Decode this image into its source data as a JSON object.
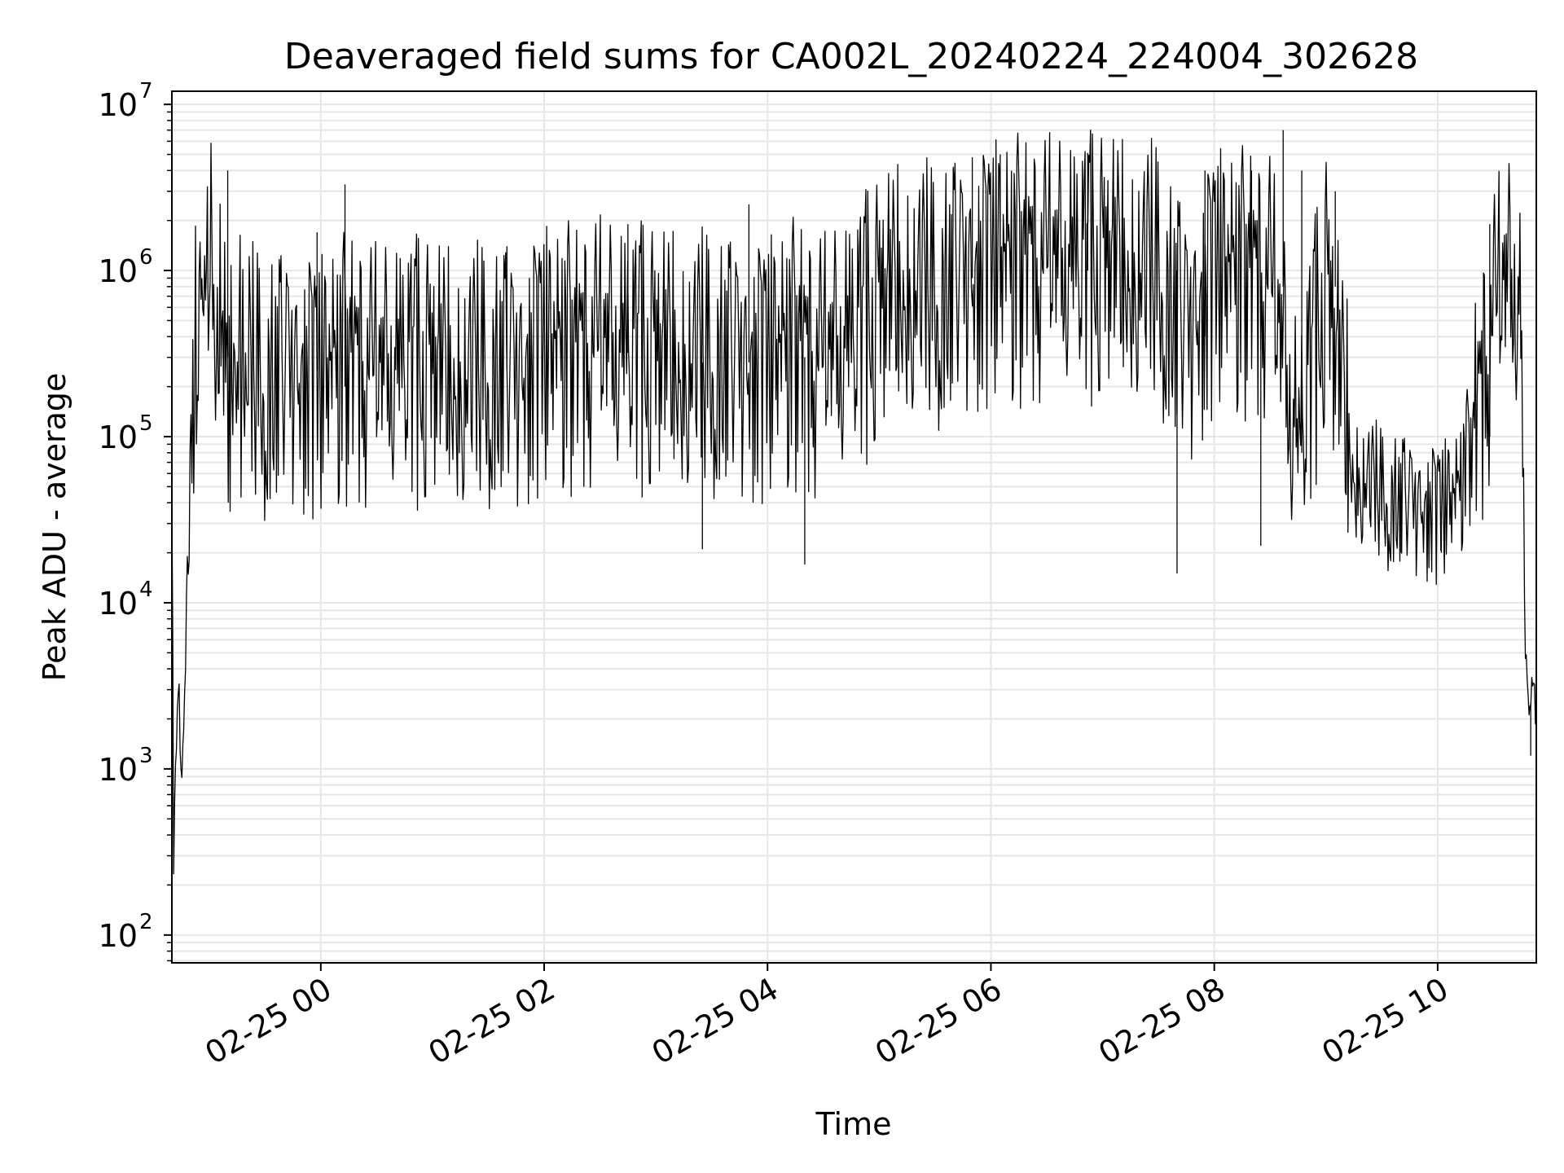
{
  "chart_data": {
    "type": "line",
    "title": "Deaveraged field sums for CA002L_20240224_224004_302628",
    "xlabel": "Time",
    "ylabel": "Peak ADU - average",
    "yscale": "log",
    "grid": true,
    "xlim": [
      "2025-02-24 22:40",
      "2025-02-25 10:53"
    ],
    "ylim": [
      68,
      12000000
    ],
    "x_ticks": [
      {
        "value": "2025-02-25 00:00",
        "label": "02-25 00"
      },
      {
        "value": "2025-02-25 02:00",
        "label": "02-25 02"
      },
      {
        "value": "2025-02-25 04:00",
        "label": "02-25 04"
      },
      {
        "value": "2025-02-25 06:00",
        "label": "02-25 06"
      },
      {
        "value": "2025-02-25 08:00",
        "label": "02-25 08"
      },
      {
        "value": "2025-02-25 10:00",
        "label": "02-25 10"
      }
    ],
    "y_ticks": [
      {
        "value": 100,
        "base": "10",
        "exp": "2"
      },
      {
        "value": 1000,
        "base": "10",
        "exp": "3"
      },
      {
        "value": 10000,
        "base": "10",
        "exp": "4"
      },
      {
        "value": 100000,
        "base": "10",
        "exp": "5"
      },
      {
        "value": 1000000,
        "base": "10",
        "exp": "6"
      },
      {
        "value": 10000000,
        "base": "10",
        "exp": "7"
      }
    ],
    "series": [
      {
        "line_color": "#000000",
        "x": [
          "2025-02-24 22:40",
          "2025-02-24 22:41",
          "2025-02-24 22:42",
          "2025-02-24 22:43",
          "2025-02-24 22:44",
          "2025-02-24 22:45",
          "2025-02-24 22:47",
          "2025-02-24 22:48",
          "2025-02-24 22:50",
          "2025-02-24 22:52",
          "2025-02-24 22:54",
          "2025-02-24 22:56",
          "2025-02-24 22:58",
          "2025-02-24 23:00",
          "2025-02-24 23:02",
          "2025-02-24 23:04",
          "2025-02-24 23:06",
          "2025-02-24 23:08",
          "2025-02-24 23:10",
          "2025-02-24 23:12",
          "2025-02-24 23:14",
          "2025-02-24 23:16",
          "2025-02-24 23:18",
          "2025-02-24 23:20",
          "2025-02-24 23:30",
          "2025-02-24 23:45",
          "2025-02-25 00:00",
          "2025-02-25 00:15",
          "2025-02-25 00:30",
          "2025-02-25 00:45",
          "2025-02-25 01:00",
          "2025-02-25 01:15",
          "2025-02-25 01:30",
          "2025-02-25 01:45",
          "2025-02-25 02:00",
          "2025-02-25 02:15",
          "2025-02-25 02:30",
          "2025-02-25 02:45",
          "2025-02-25 03:00",
          "2025-02-25 03:15",
          "2025-02-25 03:30",
          "2025-02-25 03:45",
          "2025-02-25 04:00",
          "2025-02-25 04:15",
          "2025-02-25 04:30",
          "2025-02-25 04:45",
          "2025-02-25 05:00",
          "2025-02-25 05:15",
          "2025-02-25 05:30",
          "2025-02-25 05:45",
          "2025-02-25 06:00",
          "2025-02-25 06:15",
          "2025-02-25 06:30",
          "2025-02-25 06:45",
          "2025-02-25 07:00",
          "2025-02-25 07:15",
          "2025-02-25 07:30",
          "2025-02-25 07:45",
          "2025-02-25 08:00",
          "2025-02-25 08:15",
          "2025-02-25 08:30",
          "2025-02-25 08:45",
          "2025-02-25 09:00",
          "2025-02-25 09:15",
          "2025-02-25 09:30",
          "2025-02-25 09:45",
          "2025-02-25 10:00",
          "2025-02-25 10:10",
          "2025-02-25 10:20",
          "2025-02-25 10:30",
          "2025-02-25 10:35",
          "2025-02-25 10:40",
          "2025-02-25 10:43",
          "2025-02-25 10:45",
          "2025-02-25 10:47",
          "2025-02-25 10:49",
          "2025-02-25 10:51",
          "2025-02-25 10:53"
        ],
        "y": [
          90000,
          250,
          1500,
          2000,
          3000,
          700,
          2500,
          15000,
          40000,
          250000,
          400000,
          500000,
          1000000,
          1100000,
          700000,
          500000,
          400000,
          300000,
          250000,
          200000,
          300000,
          250000,
          300000,
          250000,
          220000,
          250000,
          200000,
          250000,
          220000,
          250000,
          250000,
          220000,
          260000,
          240000,
          300000,
          280000,
          320000,
          300000,
          300000,
          280000,
          300000,
          280000,
          260000,
          300000,
          250000,
          350000,
          600000,
          800000,
          750000,
          900000,
          1000000,
          950000,
          1000000,
          1000000,
          1100000,
          1000000,
          1000000,
          400000,
          900000,
          800000,
          800000,
          80000,
          800000,
          60000,
          45000,
          40000,
          35000,
          40000,
          100000,
          450000,
          700000,
          750000,
          700000,
          300000,
          5000,
          2500,
          3000,
          2200
        ],
        "spikes": [
          {
            "x": "2025-02-24 23:10",
            "y": 4000000
          },
          {
            "x": "2025-02-24 23:58",
            "y": 1700000
          },
          {
            "x": "2025-02-25 00:13",
            "y": 3300000
          },
          {
            "x": "2025-02-25 01:40",
            "y": 1400000
          },
          {
            "x": "2025-02-25 02:45",
            "y": 1900000
          },
          {
            "x": "2025-02-25 03:25",
            "y": 21000
          },
          {
            "x": "2025-02-25 03:50",
            "y": 2500000
          },
          {
            "x": "2025-02-25 04:20",
            "y": 17000
          },
          {
            "x": "2025-02-25 05:50",
            "y": 4800000
          },
          {
            "x": "2025-02-25 06:05",
            "y": 5000000
          },
          {
            "x": "2025-02-25 06:52",
            "y": 5100000
          },
          {
            "x": "2025-02-25 07:40",
            "y": 15000
          },
          {
            "x": "2025-02-25 07:55",
            "y": 4000000
          },
          {
            "x": "2025-02-25 08:20",
            "y": 4000000
          },
          {
            "x": "2025-02-25 08:25",
            "y": 22000
          },
          {
            "x": "2025-02-25 08:37",
            "y": 7000000
          },
          {
            "x": "2025-02-25 08:47",
            "y": 4000000
          },
          {
            "x": "2025-02-25 09:05",
            "y": 3000000
          },
          {
            "x": "2025-02-25 09:40",
            "y": 20000
          },
          {
            "x": "2025-02-25 10:02",
            "y": 20000
          },
          {
            "x": "2025-02-25 10:28",
            "y": 1900000
          },
          {
            "x": "2025-02-25 10:50",
            "y": 1200
          }
        ]
      }
    ]
  }
}
